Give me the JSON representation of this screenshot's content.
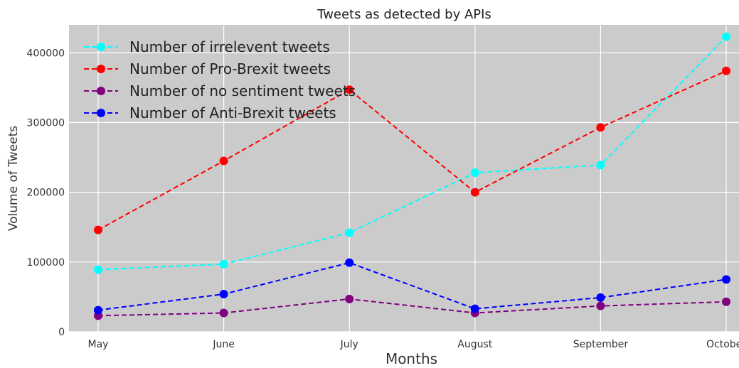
{
  "chart_data": {
    "type": "line",
    "title": "Tweets as detected by APIs",
    "xlabel": "Months",
    "ylabel": "Volume of Tweets",
    "categories": [
      "May",
      "June",
      "July",
      "August",
      "September",
      "October"
    ],
    "ylim": [
      0,
      440000
    ],
    "yticks": [
      0,
      100000,
      200000,
      300000,
      400000
    ],
    "grid": true,
    "background": "#cbcbcb",
    "legend_position": "top-left",
    "series": [
      {
        "name": "Number of irrelevent tweets",
        "color": "#00ffff",
        "values": [
          89000,
          97000,
          142000,
          228000,
          239000,
          423000
        ]
      },
      {
        "name": "Number of Pro-Brexit tweets",
        "color": "#ff0000",
        "values": [
          146000,
          245000,
          347000,
          200000,
          293000,
          374000
        ]
      },
      {
        "name": "Number of no sentiment tweets",
        "color": "#800080",
        "values": [
          23000,
          27000,
          47000,
          27000,
          37000,
          43000
        ]
      },
      {
        "name": "Number of Anti-Brexit tweets",
        "color": "#0000ff",
        "values": [
          31000,
          54000,
          99000,
          33000,
          49000,
          75000
        ]
      }
    ]
  }
}
